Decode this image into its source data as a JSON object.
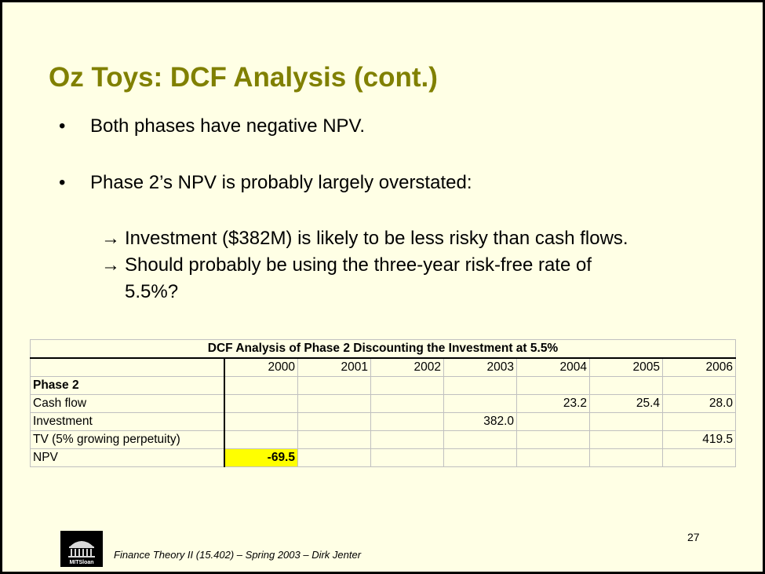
{
  "title": "Oz Toys: DCF Analysis (cont.)",
  "bullets": [
    "Both phases have negative NPV.",
    "Phase 2’s NPV is probably largely overstated:"
  ],
  "bullet_symbol": "•",
  "arrow_symbol": "→",
  "sub_bullets": [
    "Investment ($382M) is likely to be less risky than cash flows.",
    "Should probably be using the three-year risk-free rate of",
    "5.5%?"
  ],
  "table": {
    "caption": "DCF Analysis of Phase 2 Discounting the Investment at 5.5%",
    "years": [
      "2000",
      "2001",
      "2002",
      "2003",
      "2004",
      "2005",
      "2006"
    ],
    "rows": [
      {
        "label": "Phase 2",
        "cells": [
          "",
          "",
          "",
          "",
          "",
          "",
          ""
        ]
      },
      {
        "label": "Cash flow",
        "cells": [
          "",
          "",
          "",
          "",
          "23.2",
          "25.4",
          "28.0"
        ]
      },
      {
        "label": "Investment",
        "cells": [
          "",
          "",
          "",
          "382.0",
          "",
          "",
          ""
        ]
      },
      {
        "label": "TV (5% growing perpetuity)",
        "cells": [
          "",
          "",
          "",
          "",
          "",
          "",
          "419.5"
        ]
      },
      {
        "label": "NPV",
        "cells": [
          "-69.5",
          "",
          "",
          "",
          "",
          "",
          ""
        ]
      }
    ],
    "highlight_color": "#FFFF00"
  },
  "page_number": "27",
  "logo_text": "MITSloan",
  "footer": "Finance Theory II (15.402) – Spring 2003 – Dirk Jenter",
  "colors": {
    "title": "#808000",
    "background": "#FFFFE5"
  }
}
